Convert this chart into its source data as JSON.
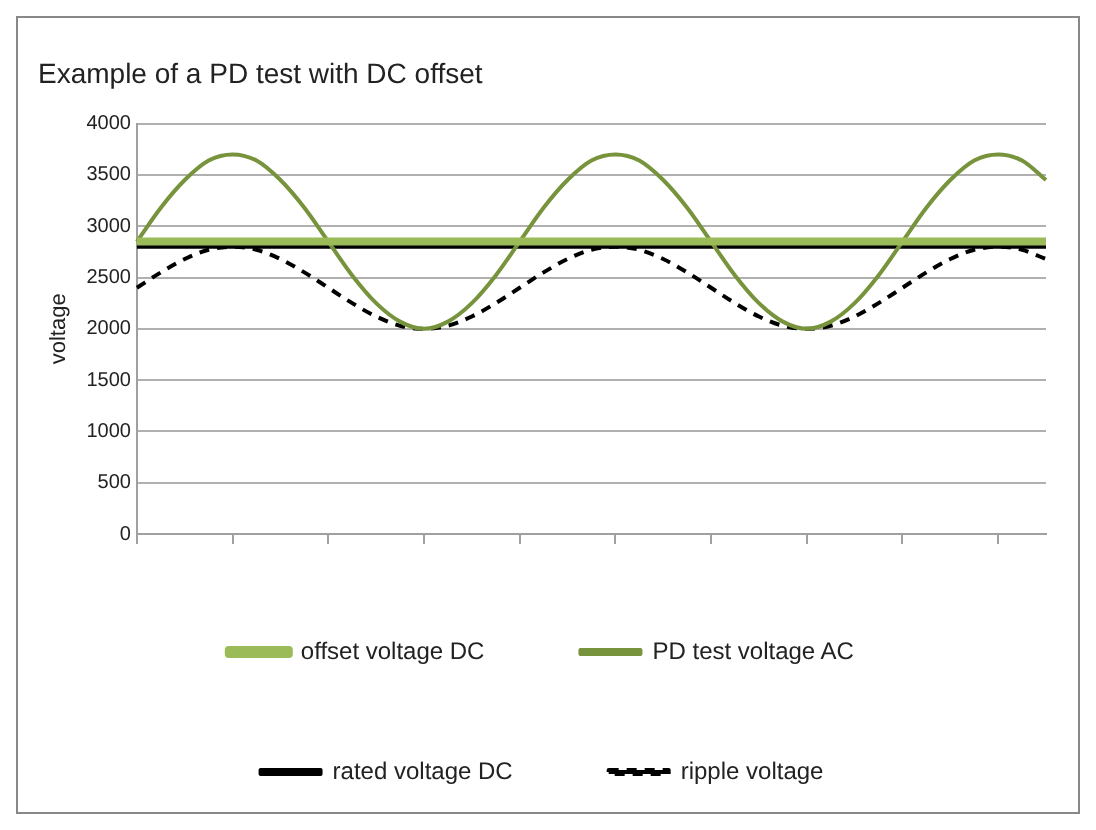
{
  "chart_data": {
    "type": "line",
    "title": "Example of a PD test with DC offset",
    "ylabel": "voltage",
    "categories": [
      null,
      null,
      null,
      null,
      null,
      null,
      null,
      null,
      null,
      null,
      null,
      null,
      null,
      null,
      null,
      null,
      null,
      null,
      null,
      null,
      null,
      null,
      null,
      null,
      null,
      null,
      null,
      null,
      null,
      null,
      null,
      null,
      null,
      null,
      null,
      null,
      null,
      null,
      null
    ],
    "ylim": [
      0,
      4000
    ],
    "yticks": [
      0,
      500,
      1000,
      1500,
      2000,
      2500,
      3000,
      3500,
      4000
    ],
    "tick_labels": "y",
    "grid": "y",
    "legend": "bottom",
    "marker": "none",
    "series": [
      {
        "name": "offset voltage DC",
        "color": "#9bbb59",
        "values": [
          2850,
          2850,
          2850,
          2850,
          2850,
          2850,
          2850,
          2850,
          2850,
          2850,
          2850,
          2850,
          2850,
          2850,
          2850,
          2850,
          2850,
          2850,
          2850,
          2850,
          2850,
          2850,
          2850,
          2850,
          2850,
          2850,
          2850,
          2850,
          2850,
          2850,
          2850,
          2850,
          2850,
          2850,
          2850,
          2850,
          2850,
          2850,
          2850
        ]
      },
      {
        "name": "PD test voltage AC",
        "color": "#77933c",
        "values": [
          2850,
          3180,
          3450,
          3640,
          3700,
          3640,
          3450,
          3180,
          2850,
          2520,
          2250,
          2070,
          2000,
          2070,
          2250,
          2520,
          2850,
          3180,
          3450,
          3640,
          3700,
          3640,
          3450,
          3180,
          2850,
          2520,
          2250,
          2070,
          2000,
          2070,
          2250,
          2520,
          2850,
          3180,
          3450,
          3640,
          3700,
          3640,
          3450
        ]
      },
      {
        "name": "rated voltage DC",
        "color": "#000000",
        "values": [
          2800,
          2800,
          2800,
          2800,
          2800,
          2800,
          2800,
          2800,
          2800,
          2800,
          2800,
          2800,
          2800,
          2800,
          2800,
          2800,
          2800,
          2800,
          2800,
          2800,
          2800,
          2800,
          2800,
          2800,
          2800,
          2800,
          2800,
          2800,
          2800,
          2800,
          2800,
          2800,
          2800,
          2800,
          2800,
          2800,
          2800,
          2800,
          2800
        ]
      },
      {
        "name": "ripple voltage",
        "color": "#000000",
        "line_style": "dashed",
        "values": [
          2400,
          2550,
          2680,
          2770,
          2800,
          2770,
          2680,
          2550,
          2400,
          2250,
          2120,
          2030,
          2000,
          2030,
          2120,
          2250,
          2400,
          2550,
          2680,
          2770,
          2800,
          2770,
          2680,
          2550,
          2400,
          2250,
          2120,
          2030,
          2000,
          2030,
          2120,
          2250,
          2400,
          2550,
          2680,
          2770,
          2800,
          2770,
          2680
        ]
      }
    ]
  }
}
